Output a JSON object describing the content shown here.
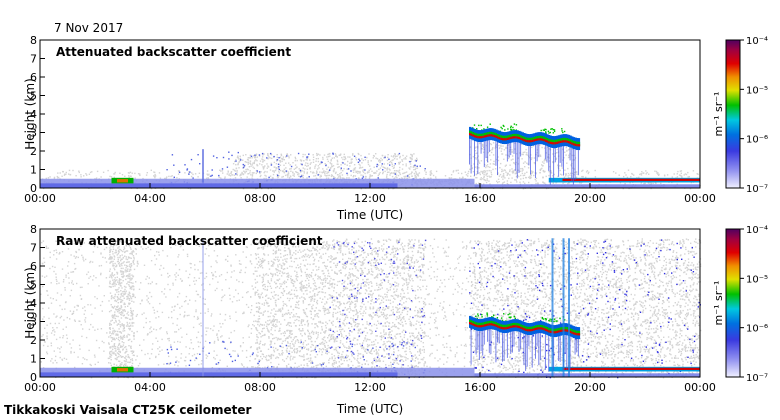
{
  "date": "7 Nov 2017",
  "footer": "Tikkakoski Vaisala CT25K ceilometer",
  "chart_data": [
    {
      "type": "heatmap",
      "title": "Attenuated backscatter coefficient",
      "xlabel": "Time (UTC)",
      "ylabel": "Height (km)",
      "xlim": [
        "00:00",
        "00:00"
      ],
      "x_ticks": [
        "00:00",
        "04:00",
        "08:00",
        "12:00",
        "16:00",
        "20:00",
        "00:00"
      ],
      "ylim": [
        0,
        8
      ],
      "y_ticks": [
        "0",
        "1",
        "2",
        "3",
        "4",
        "5",
        "6",
        "7",
        "8"
      ],
      "colorbar": {
        "scale": "log",
        "range": [
          1e-07,
          0.0001
        ],
        "unit": "m⁻¹ sr⁻¹",
        "ticks": [
          "10⁻⁷",
          "10⁻⁶",
          "10⁻⁵",
          "10⁻⁴"
        ]
      }
    },
    {
      "type": "heatmap",
      "title": "Raw attenuated backscatter coefficient",
      "xlabel": "Time (UTC)",
      "ylabel": "Height (km)",
      "xlim": [
        "00:00",
        "00:00"
      ],
      "x_ticks": [
        "00:00",
        "04:00",
        "08:00",
        "12:00",
        "16:00",
        "20:00",
        "00:00"
      ],
      "ylim": [
        0,
        8
      ],
      "y_ticks": [
        "0",
        "1",
        "2",
        "3",
        "4",
        "5",
        "6",
        "7",
        "8"
      ],
      "colorbar": {
        "scale": "log",
        "range": [
          1e-07,
          0.0001
        ],
        "unit": "m⁻¹ sr⁻¹",
        "ticks": [
          "10⁻⁷",
          "10⁻⁶",
          "10⁻⁵",
          "10⁻⁴"
        ]
      }
    }
  ],
  "colors": {
    "noise_gray": "#d4d4d4",
    "low_blue": "#6f78e6",
    "colormap": [
      "#e8e8ff",
      "#6a6ae8",
      "#1a6ae8",
      "#00c0e0",
      "#00c000",
      "#e8e800",
      "#e89000",
      "#e80000",
      "#a00020",
      "#500060"
    ]
  }
}
